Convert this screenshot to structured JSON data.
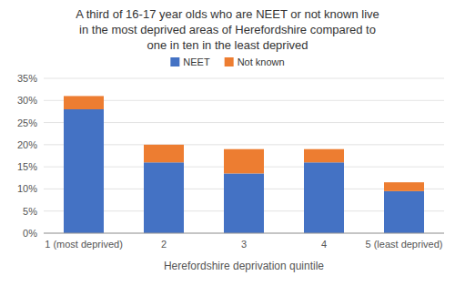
{
  "chart_data": {
    "type": "bar",
    "stacked": true,
    "title": "A third of 16-17 year olds who are NEET or not known live\nin the most deprived areas of Herefordshire compared to\none in ten in the least deprived",
    "x_label": "Herefordshire deprivation quintile",
    "categories": [
      "1 (most deprived)",
      "2",
      "3",
      "4",
      "5 (least deprived)"
    ],
    "series": [
      {
        "name": "NEET",
        "color": "#4472C4",
        "values": [
          28,
          16,
          13.5,
          16,
          9.5
        ]
      },
      {
        "name": "Not known",
        "color": "#ED7D31",
        "values": [
          3,
          4,
          5.5,
          3,
          2
        ]
      }
    ],
    "ylim": [
      0,
      35
    ],
    "yticks": [
      {
        "value": 0,
        "label": "0%"
      },
      {
        "value": 5,
        "label": "5%"
      },
      {
        "value": 10,
        "label": "10%"
      },
      {
        "value": 15,
        "label": "15%"
      },
      {
        "value": 20,
        "label": "20%"
      },
      {
        "value": 25,
        "label": "25%"
      },
      {
        "value": 30,
        "label": "30%"
      },
      {
        "value": 35,
        "label": "35%"
      }
    ],
    "grid": true,
    "legend": "top"
  }
}
